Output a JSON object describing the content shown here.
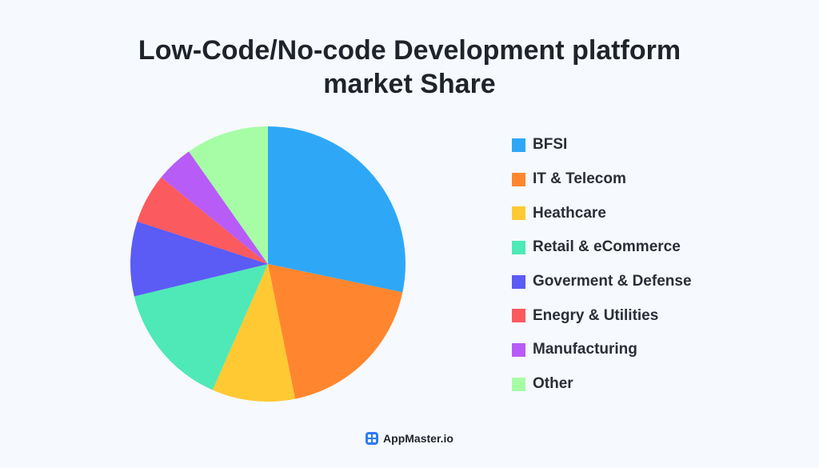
{
  "chart_data": {
    "type": "pie",
    "title_lines": [
      "Low-Code/No-code Development platform",
      "market Share"
    ],
    "series": [
      {
        "name": "BFSI",
        "value": 29,
        "color": "#2ea8f6"
      },
      {
        "name": "IT & Telecom",
        "value": 19,
        "color": "#ff862e"
      },
      {
        "name": "Heathcare",
        "value": 10,
        "color": "#ffc933"
      },
      {
        "name": "Retail & eCommerce",
        "value": 15,
        "color": "#4ee9b6"
      },
      {
        "name": "Goverment & Defense",
        "value": 9,
        "color": "#5b5bf6"
      },
      {
        "name": "Enegry & Utilities",
        "value": 6,
        "color": "#fb5a5e"
      },
      {
        "name": "Manufacturing",
        "value": 4.5,
        "color": "#b75cf7"
      },
      {
        "name": "Other",
        "value": 10,
        "color": "#a6fda5"
      }
    ],
    "legend_position": "right",
    "start_angle": "top, clockwise"
  },
  "footer": {
    "brand": "AppMaster.io",
    "icon": "appmaster-logo-icon",
    "icon_color": "#2f7bf6"
  }
}
